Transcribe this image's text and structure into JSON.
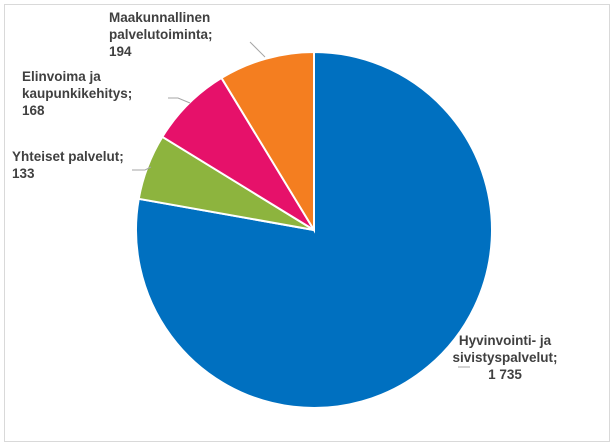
{
  "chart_data": {
    "type": "pie",
    "title": "",
    "slices": [
      {
        "name": "Hyvinvointi- ja sivistyspalvelut",
        "value": 1735,
        "value_label": "1 735",
        "color": "#0070C0",
        "label_lines": [
          "Hyvinvointi- ja",
          "sivistyspalvelut;",
          "1 735"
        ]
      },
      {
        "name": "Yhteiset palvelut",
        "value": 133,
        "value_label": "133",
        "color": "#8DB43E",
        "label_lines": [
          "Yhteiset palvelut;",
          "133"
        ]
      },
      {
        "name": "Elinvoima ja kaupunkikehitys",
        "value": 168,
        "value_label": "168",
        "color": "#E6116A",
        "label_lines": [
          "Elinvoima ja",
          "kaupunkikehitys;",
          "168"
        ]
      },
      {
        "name": "Maakunnallinen palvelutoiminta",
        "value": 194,
        "value_label": "194",
        "color": "#F47E20",
        "label_lines": [
          "Maakunnallinen",
          "palvelutoiminta;",
          "194"
        ]
      }
    ],
    "start_angle_deg": 0,
    "direction": "clockwise",
    "legend": "none"
  }
}
